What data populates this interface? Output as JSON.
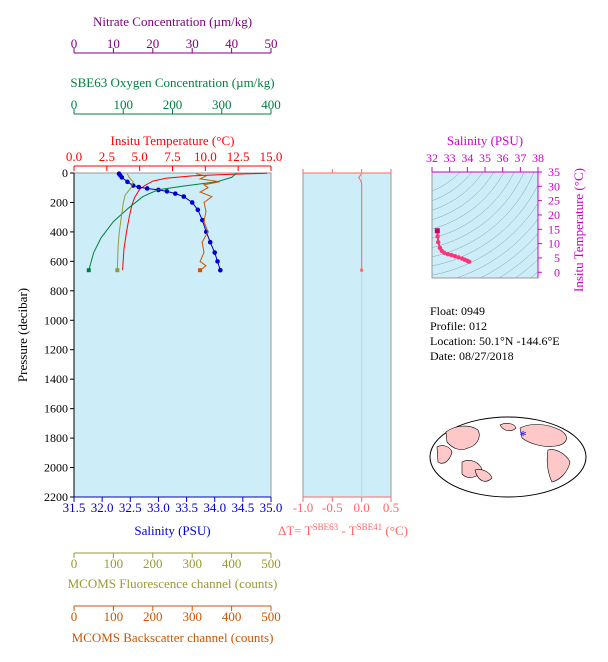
{
  "float_info": {
    "float_label": "Float:",
    "float_value": "0949",
    "profile_label": "Profile:",
    "profile_value": "012",
    "location_label": "Location:",
    "location_value": "50.1°N  -144.6°E",
    "date_label": "Date:",
    "date_value": "08/27/2018"
  },
  "colors": {
    "plot_bg": "#cdeef8",
    "temperature": "#ff0000",
    "salinity": "#0000cc",
    "oxygen": "#008040",
    "nitrate": "#800080",
    "fluorescence": "#999933",
    "backscatter": "#cc5500",
    "delta_t": "#ff6666",
    "ts_salinity": "#cc00cc",
    "ts_points": "#ff3377",
    "land": "#ffc8c8",
    "ocean": "#ffffff"
  },
  "chart_data": [
    {
      "type": "line",
      "id": "main_profile",
      "ylabel": "Pressure (decibar)",
      "ylim": [
        2200,
        0
      ],
      "yticks": [
        "0",
        "200",
        "400",
        "600",
        "800",
        "1000",
        "1200",
        "1400",
        "1600",
        "1800",
        "2000",
        "2200"
      ],
      "axes": {
        "temperature": {
          "label": "Insitu Temperature (°C)",
          "range": [
            0,
            15
          ],
          "ticks": [
            "0.0",
            "2.5",
            "5.0",
            "7.5",
            "10.0",
            "12.5",
            "15.0"
          ]
        },
        "salinity": {
          "label": "Salinity (PSU)",
          "range": [
            31.5,
            35.0
          ],
          "ticks": [
            "31.5",
            "32.0",
            "32.5",
            "33.0",
            "33.5",
            "34.0",
            "34.5",
            "35.0"
          ]
        },
        "oxygen": {
          "label": "SBE63 Oxygen Concentration (µm/kg)",
          "range": [
            0,
            400
          ],
          "ticks": [
            "0",
            "100",
            "200",
            "300",
            "400"
          ]
        },
        "nitrate": {
          "label": "Nitrate Concentration (µm/kg)",
          "range": [
            0,
            50
          ],
          "ticks": [
            "0",
            "10",
            "20",
            "30",
            "40",
            "50"
          ]
        },
        "fluorescence": {
          "label": "MCOMS Fluorescence channel (counts)",
          "range": [
            0,
            500
          ],
          "ticks": [
            "0",
            "100",
            "200",
            "300",
            "400",
            "500"
          ]
        },
        "backscatter": {
          "label": "MCOMS Backscatter channel (counts)",
          "range": [
            0,
            500
          ],
          "ticks": [
            "0",
            "100",
            "200",
            "300",
            "400",
            "500"
          ]
        }
      },
      "series": [
        {
          "name": "Temperature",
          "axis": "temperature",
          "points": [
            [
              14.7,
              2
            ],
            [
              13.0,
              6
            ],
            [
              11.0,
              12
            ],
            [
              9.0,
              20
            ],
            [
              7.0,
              35
            ],
            [
              6.0,
              55
            ],
            [
              5.4,
              85
            ],
            [
              5.0,
              110
            ],
            [
              4.8,
              140
            ],
            [
              4.6,
              170
            ],
            [
              4.4,
              220
            ],
            [
              4.2,
              300
            ],
            [
              4.0,
              400
            ],
            [
              3.8,
              520
            ],
            [
              3.7,
              660
            ]
          ]
        },
        {
          "name": "Salinity",
          "axis": "salinity",
          "points": [
            [
              32.3,
              5
            ],
            [
              32.32,
              15
            ],
            [
              32.35,
              30
            ],
            [
              32.45,
              60
            ],
            [
              32.55,
              85
            ],
            [
              32.65,
              95
            ],
            [
              32.8,
              105
            ],
            [
              33.0,
              115
            ],
            [
              33.15,
              125
            ],
            [
              33.3,
              140
            ],
            [
              33.45,
              160
            ],
            [
              33.6,
              200
            ],
            [
              33.7,
              250
            ],
            [
              33.78,
              320
            ],
            [
              33.85,
              400
            ],
            [
              33.92,
              470
            ],
            [
              34.0,
              540
            ],
            [
              34.05,
              600
            ],
            [
              34.1,
              660
            ]
          ]
        },
        {
          "name": "Oxygen",
          "axis": "oxygen",
          "points": [
            [
              330,
              2
            ],
            [
              320,
              30
            ],
            [
              290,
              60
            ],
            [
              220,
              90
            ],
            [
              170,
              115
            ],
            [
              140,
              160
            ],
            [
              110,
              240
            ],
            [
              80,
              330
            ],
            [
              55,
              440
            ],
            [
              40,
              540
            ],
            [
              30,
              660
            ]
          ]
        },
        {
          "name": "Fluorescence",
          "axis": "fluorescence",
          "points": [
            [
              135,
              5
            ],
            [
              140,
              30
            ],
            [
              150,
              60
            ],
            [
              145,
              100
            ],
            [
              130,
              150
            ],
            [
              125,
              200
            ],
            [
              120,
              300
            ],
            [
              115,
              400
            ],
            [
              112,
              500
            ],
            [
              110,
              660
            ]
          ]
        },
        {
          "name": "Backscatter",
          "axis": "backscatter",
          "points": [
            [
              310,
              5
            ],
            [
              335,
              20
            ],
            [
              320,
              40
            ],
            [
              370,
              60
            ],
            [
              330,
              80
            ],
            [
              340,
              100
            ],
            [
              320,
              130
            ],
            [
              350,
              160
            ],
            [
              330,
              200
            ],
            [
              335,
              260
            ],
            [
              330,
              330
            ],
            [
              340,
              400
            ],
            [
              325,
              470
            ],
            [
              330,
              540
            ],
            [
              320,
              600
            ],
            [
              335,
              630
            ],
            [
              320,
              660
            ]
          ]
        }
      ]
    },
    {
      "type": "line",
      "id": "delta_t",
      "xlabel": "ΔT= T",
      "xlabel_sup1": "SBE63",
      "xlabel_mid": " - T",
      "xlabel_sup2": "SBE41",
      "xlabel_unit": " (°C)",
      "xlim": [
        -1.0,
        0.5
      ],
      "xticks": [
        "-1.0",
        "-0.5",
        "0.0",
        "0.5"
      ],
      "ylim": [
        2200,
        0
      ],
      "series": [
        {
          "name": "ΔT",
          "points": [
            [
              0.0,
              5
            ],
            [
              -0.05,
              30
            ],
            [
              -0.02,
              50
            ],
            [
              0.0,
              70
            ],
            [
              0.0,
              660
            ]
          ]
        }
      ]
    },
    {
      "type": "scatter",
      "id": "ts_diagram",
      "xlabel": "Salinity (PSU)",
      "ylabel": "Insitu Temperature (°C)",
      "xlim": [
        32,
        38
      ],
      "ylim": [
        -2,
        35
      ],
      "xticks": [
        "32",
        "33",
        "34",
        "35",
        "36",
        "37",
        "38"
      ],
      "yticks": [
        "0",
        "5",
        "10",
        "15",
        "20",
        "25",
        "30",
        "35"
      ],
      "points": [
        [
          32.3,
          14.5
        ],
        [
          32.32,
          12.5
        ],
        [
          32.35,
          10.5
        ],
        [
          32.45,
          8.5
        ],
        [
          32.55,
          7.5
        ],
        [
          32.7,
          6.8
        ],
        [
          32.9,
          6.3
        ],
        [
          33.1,
          6.0
        ],
        [
          33.3,
          5.6
        ],
        [
          33.5,
          5.2
        ],
        [
          33.7,
          4.8
        ],
        [
          33.85,
          4.4
        ],
        [
          34.0,
          4.0
        ],
        [
          34.1,
          3.7
        ]
      ]
    }
  ]
}
